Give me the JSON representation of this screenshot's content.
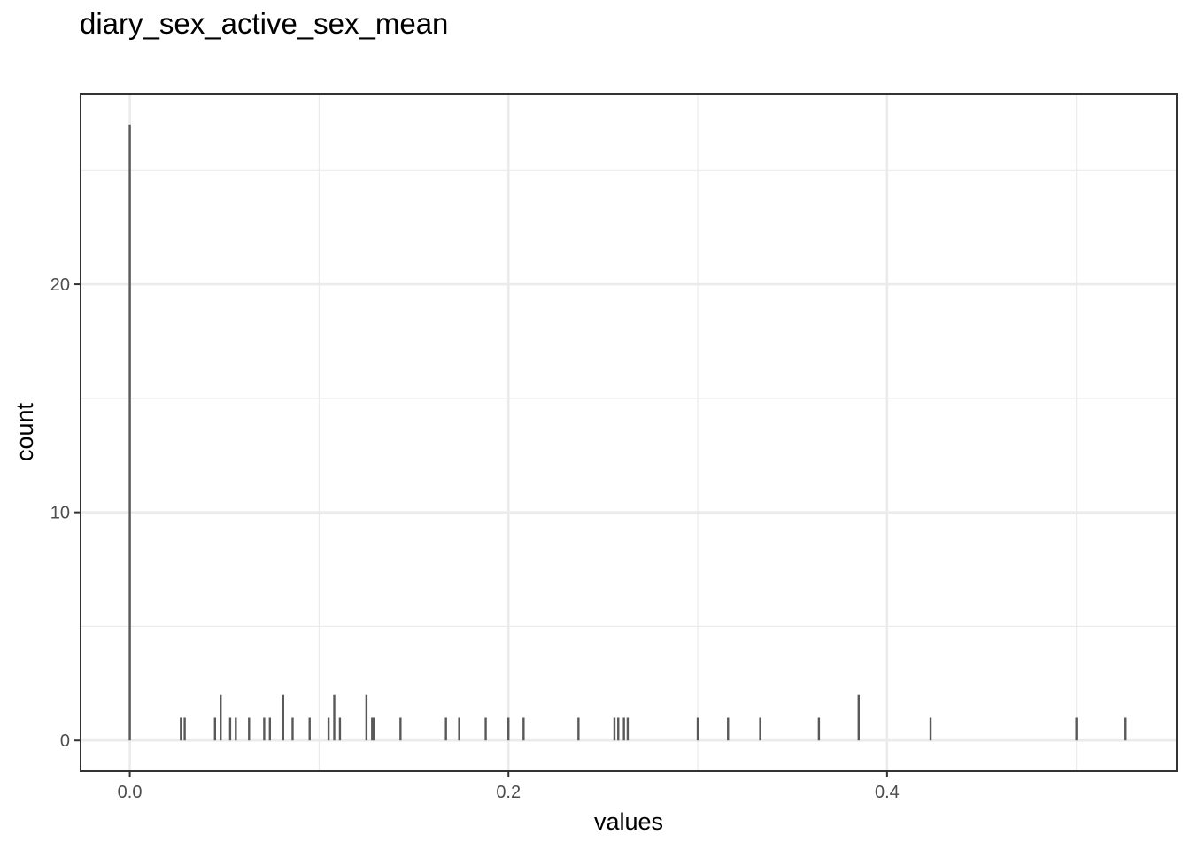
{
  "chart_data": {
    "type": "bar",
    "title": "diary_sex_active_sex_mean",
    "xlabel": "values",
    "ylabel": "count",
    "xlim": [
      -0.026,
      0.553
    ],
    "ylim": [
      -1.35,
      28.35
    ],
    "xticks": [
      0.0,
      0.2,
      0.4
    ],
    "xtick_labels": [
      "0.0",
      "0.2",
      "0.4"
    ],
    "yticks": [
      0,
      10,
      20
    ],
    "ytick_labels": [
      "0",
      "10",
      "20"
    ],
    "x_minor_grid": [
      0.1,
      0.3,
      0.5
    ],
    "y_minor_grid": [
      5,
      15,
      25
    ],
    "grid": true,
    "legend": "none",
    "colors": {
      "bar": "#595959",
      "grid": "#ebebeb",
      "panel_border": "#333333",
      "background": "#ffffff"
    },
    "x": [
      0.0,
      0.027,
      0.029,
      0.045,
      0.048,
      0.053,
      0.056,
      0.063,
      0.071,
      0.074,
      0.081,
      0.086,
      0.095,
      0.105,
      0.108,
      0.111,
      0.125,
      0.128,
      0.129,
      0.143,
      0.167,
      0.174,
      0.188,
      0.2,
      0.208,
      0.237,
      0.256,
      0.258,
      0.261,
      0.263,
      0.3,
      0.316,
      0.333,
      0.364,
      0.385,
      0.423,
      0.5,
      0.526
    ],
    "values": [
      27,
      1,
      1,
      1,
      2,
      1,
      1,
      1,
      1,
      1,
      2,
      1,
      1,
      1,
      2,
      1,
      2,
      1,
      1,
      1,
      1,
      1,
      1,
      1,
      1,
      1,
      1,
      1,
      1,
      1,
      1,
      1,
      1,
      1,
      2,
      1,
      1,
      1
    ]
  }
}
